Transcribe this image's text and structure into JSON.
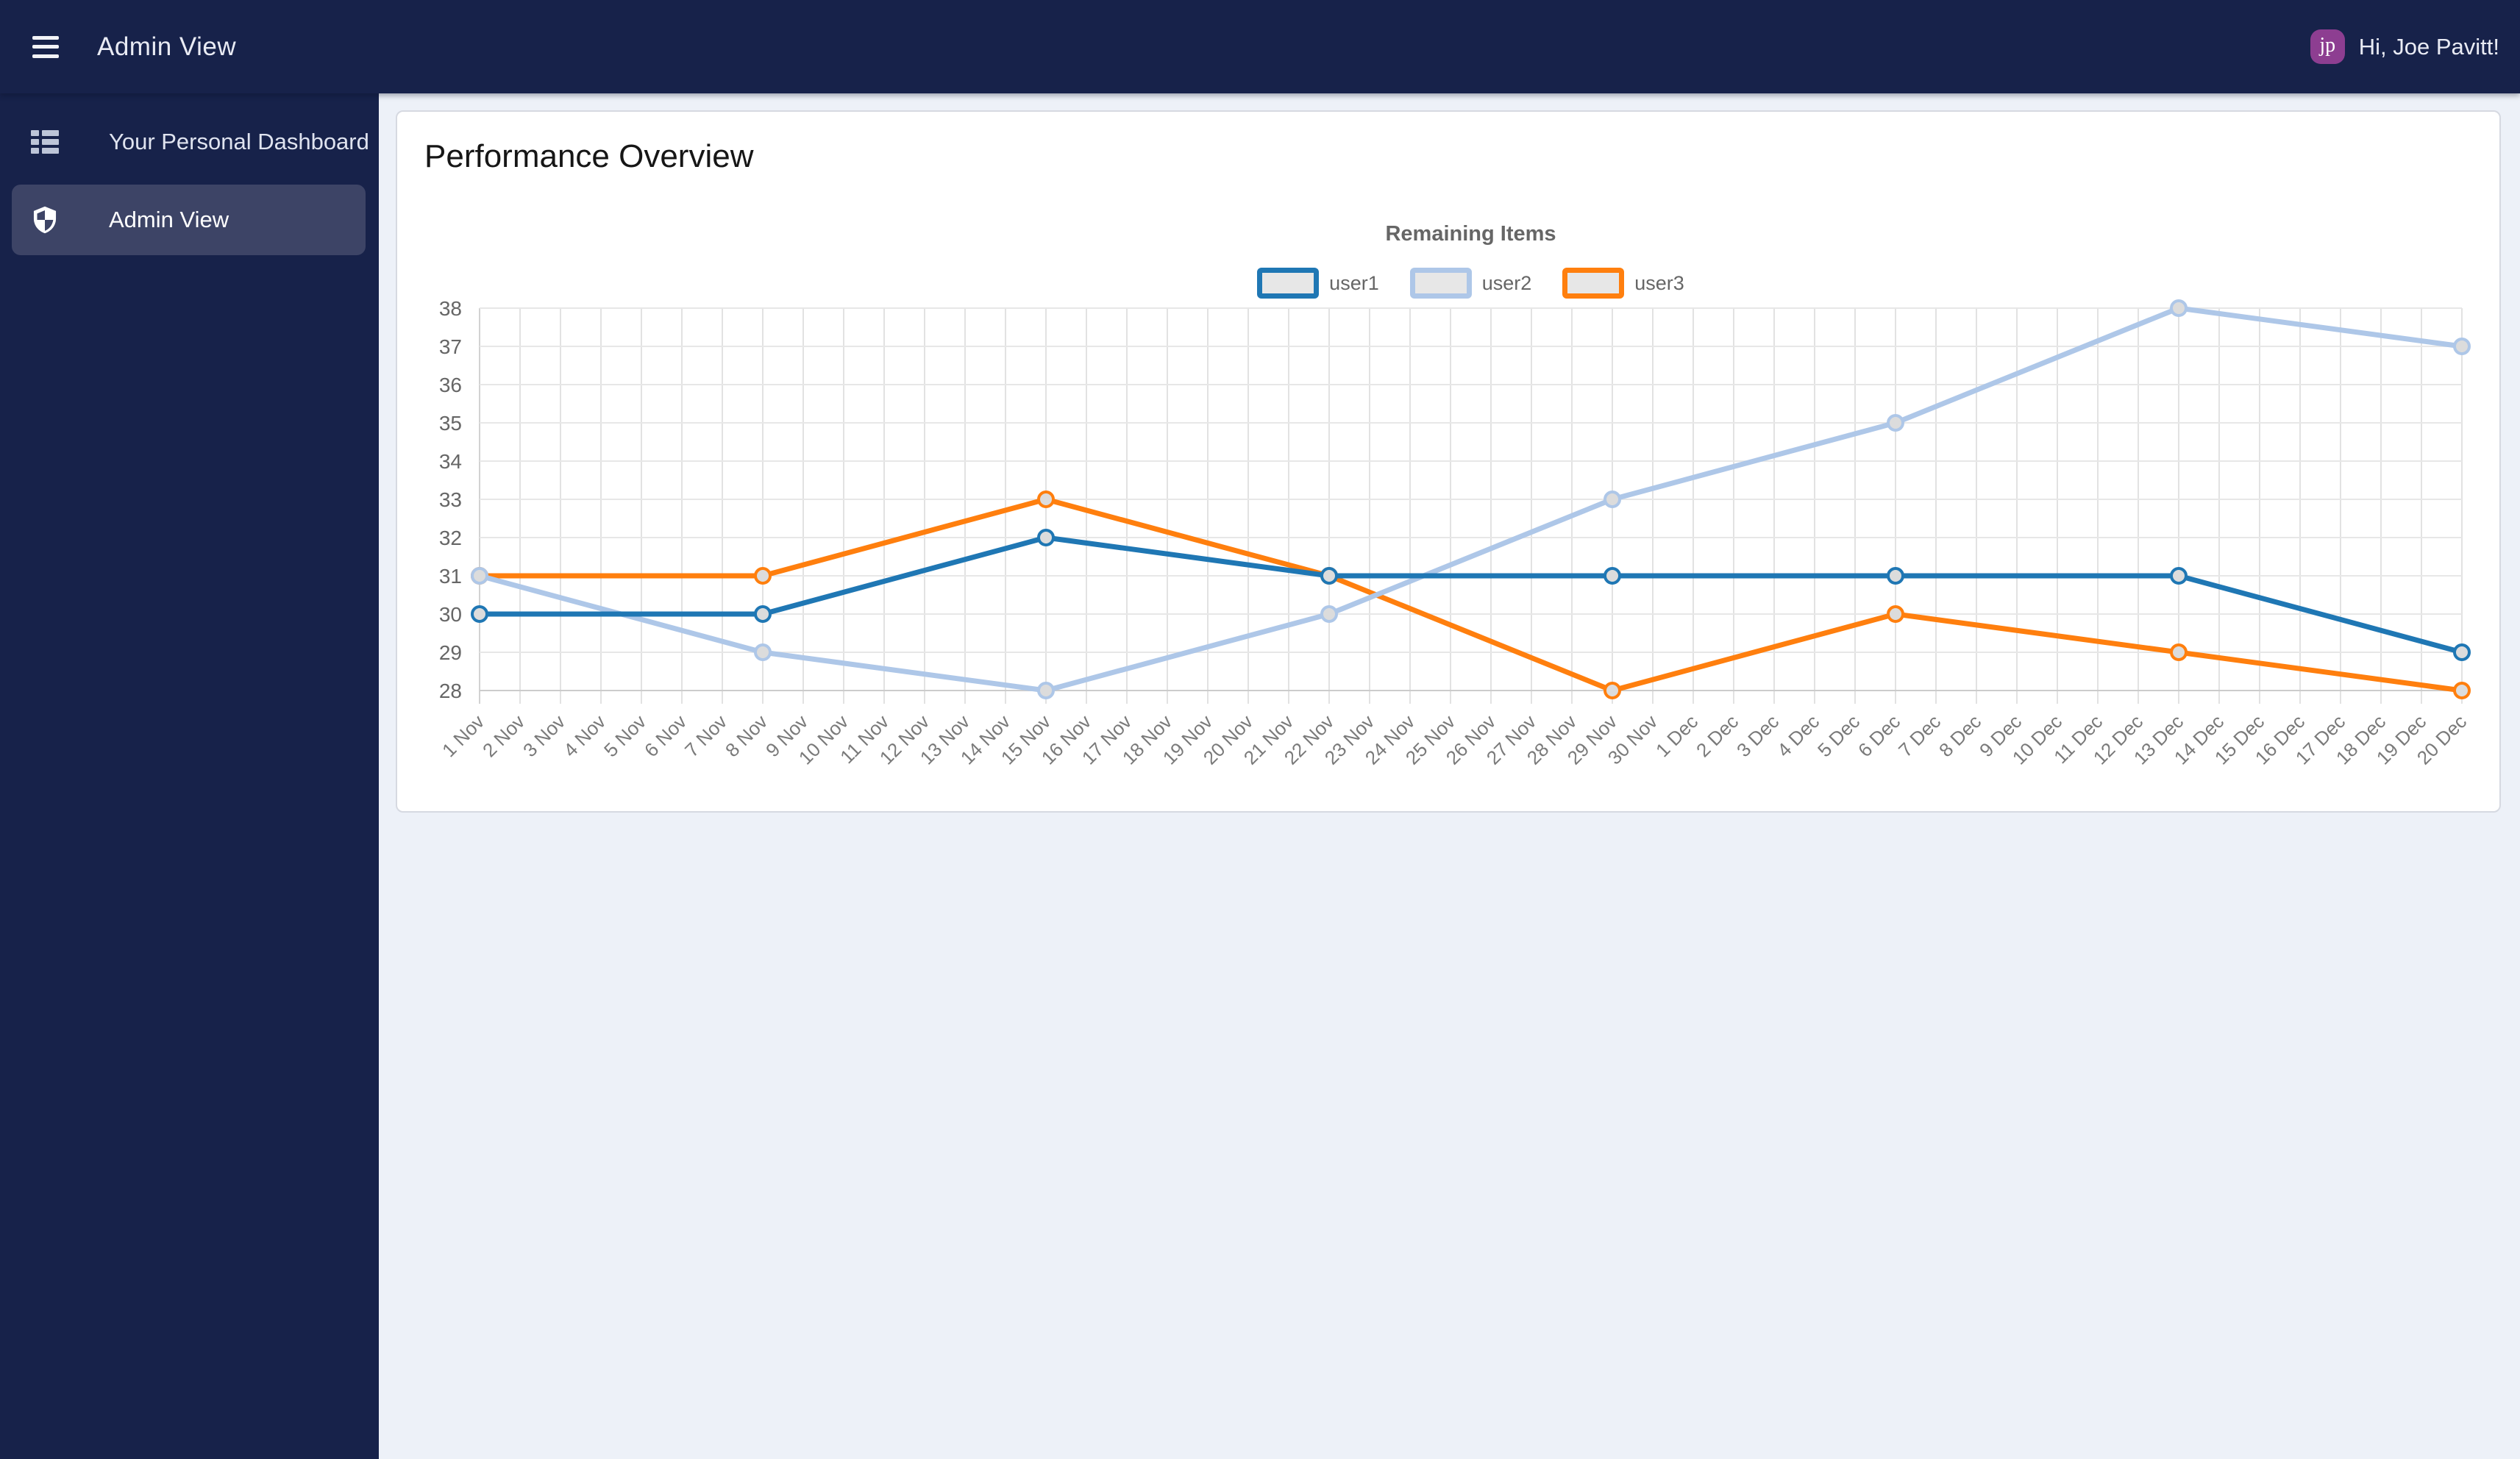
{
  "topbar": {
    "title": "Admin View",
    "greeting": "Hi, Joe Pavitt!",
    "avatar_initials": "jp",
    "avatar_color": "#8D3E91"
  },
  "sidebar": {
    "items": [
      {
        "label": "Your Personal Dashboard",
        "icon": "dashboard-list-icon",
        "active": false
      },
      {
        "label": "Admin View",
        "icon": "shield-icon",
        "active": true
      }
    ]
  },
  "main": {
    "card_title": "Performance Overview"
  },
  "chart_data": {
    "type": "line",
    "title": "Remaining Items",
    "legend_position": "top",
    "grid": true,
    "ylim": [
      28,
      38
    ],
    "yticks": [
      28,
      29,
      30,
      31,
      32,
      33,
      34,
      35,
      36,
      37,
      38
    ],
    "x": [
      "1 Nov",
      "2 Nov",
      "3 Nov",
      "4 Nov",
      "5 Nov",
      "6 Nov",
      "7 Nov",
      "8 Nov",
      "9 Nov",
      "10 Nov",
      "11 Nov",
      "12 Nov",
      "13 Nov",
      "14 Nov",
      "15 Nov",
      "16 Nov",
      "17 Nov",
      "18 Nov",
      "19 Nov",
      "20 Nov",
      "21 Nov",
      "22 Nov",
      "23 Nov",
      "24 Nov",
      "25 Nov",
      "26 Nov",
      "27 Nov",
      "28 Nov",
      "29 Nov",
      "30 Nov",
      "1 Dec",
      "2 Dec",
      "3 Dec",
      "4 Dec",
      "5 Dec",
      "6 Dec",
      "7 Dec",
      "8 Dec",
      "9 Dec",
      "10 Dec",
      "11 Dec",
      "12 Dec",
      "13 Dec",
      "14 Dec",
      "15 Dec",
      "16 Dec",
      "17 Dec",
      "18 Dec",
      "19 Dec",
      "20 Dec"
    ],
    "point_x": [
      "1 Nov",
      "8 Nov",
      "15 Nov",
      "22 Nov",
      "29 Nov",
      "6 Dec",
      "13 Dec",
      "20 Dec"
    ],
    "series": [
      {
        "name": "user1",
        "color": "#1F77B4",
        "values": [
          30,
          30,
          32,
          31,
          31,
          31,
          31,
          29
        ]
      },
      {
        "name": "user2",
        "color": "#AEC7E8",
        "values": [
          31,
          29,
          28,
          30,
          33,
          35,
          38,
          37
        ]
      },
      {
        "name": "user3",
        "color": "#FF7F0E",
        "values": [
          31,
          31,
          33,
          31,
          28,
          30,
          29,
          28
        ]
      }
    ]
  }
}
